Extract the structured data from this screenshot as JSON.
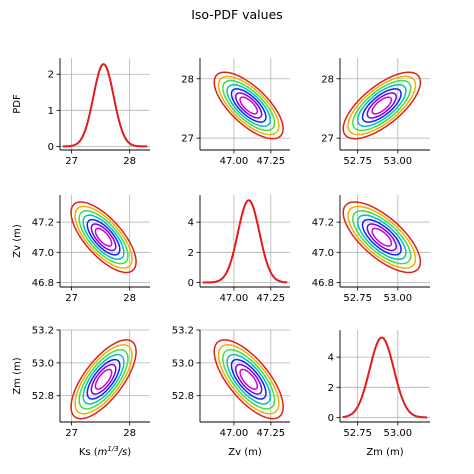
{
  "chart_data": {
    "type": "pairplot",
    "title": "Iso-PDF values",
    "variables": [
      {
        "name": "Ks",
        "label": "Ks (m^1/3/s)",
        "label_html": "Ks (",
        "label_unit_sup": "1/3",
        "label_unit_tail": "/s)",
        "range": [
          26.8,
          28.35
        ],
        "ticks": [
          27,
          28
        ],
        "tick_labels": [
          "27",
          "28"
        ],
        "mean": 27.55,
        "sd": 0.175
      },
      {
        "name": "Zv",
        "label": "Zv (m)",
        "range": [
          46.77,
          47.38
        ],
        "ticks": [
          46.8,
          47.0,
          47.2
        ],
        "tick_labels": [
          "46.8",
          "47.0",
          "47.2"
        ],
        "xticks": [
          47.0,
          47.25
        ],
        "xtick_labels": [
          "47.00",
          "47.25"
        ],
        "mean": 47.1,
        "sd": 0.073
      },
      {
        "name": "Zm",
        "label": "Zm (m)",
        "range": [
          52.64,
          53.2
        ],
        "ticks": [
          52.8,
          53.0,
          53.2
        ],
        "tick_labels": [
          "52.8",
          "53.0",
          "53.2"
        ],
        "xticks": [
          52.75,
          53.0
        ],
        "xtick_labels": [
          "52.75",
          "53.00"
        ],
        "mean": 52.9,
        "sd": 0.075
      }
    ],
    "diagonal_ylabel": "PDF",
    "diagonal": [
      {
        "var": "Ks",
        "ylim": [
          -0.1,
          2.45
        ],
        "yticks": [
          0,
          1,
          2
        ],
        "ytick_labels": [
          "0",
          "1",
          "2"
        ],
        "peak": 2.28
      },
      {
        "var": "Zv",
        "ylim": [
          -0.3,
          5.8
        ],
        "yticks": [
          0,
          2,
          4
        ],
        "ytick_labels": [
          "0",
          "2",
          "4"
        ],
        "peak": 5.45
      },
      {
        "var": "Zm",
        "ylim": [
          -0.3,
          5.8
        ],
        "yticks": [
          0,
          2,
          4
        ],
        "ytick_labels": [
          "0",
          "2",
          "4"
        ],
        "peak": 5.3
      }
    ],
    "pairs": [
      {
        "x": "Ks",
        "y": "Zv",
        "correlation": -0.7
      },
      {
        "x": "Zv",
        "y": "Ks",
        "correlation": -0.7
      },
      {
        "x": "Zm",
        "y": "Ks",
        "correlation": 0.7
      },
      {
        "x": "Ks",
        "y": "Zm",
        "correlation": 0.7
      },
      {
        "x": "Zv",
        "y": "Zm",
        "correlation": -0.7
      },
      {
        "x": "Zm",
        "y": "Zv",
        "correlation": -0.7
      }
    ],
    "contour_levels_sigma": [
      0.8,
      1.2,
      1.6,
      2.0,
      2.4,
      2.8,
      3.2
    ],
    "contour_colors": [
      "#d000d0",
      "#7a00e0",
      "#1020ff",
      "#00c0c0",
      "#40e040",
      "#f0b000",
      "#e02020"
    ],
    "diagonal_color": "#e41a1c",
    "grid": true
  }
}
